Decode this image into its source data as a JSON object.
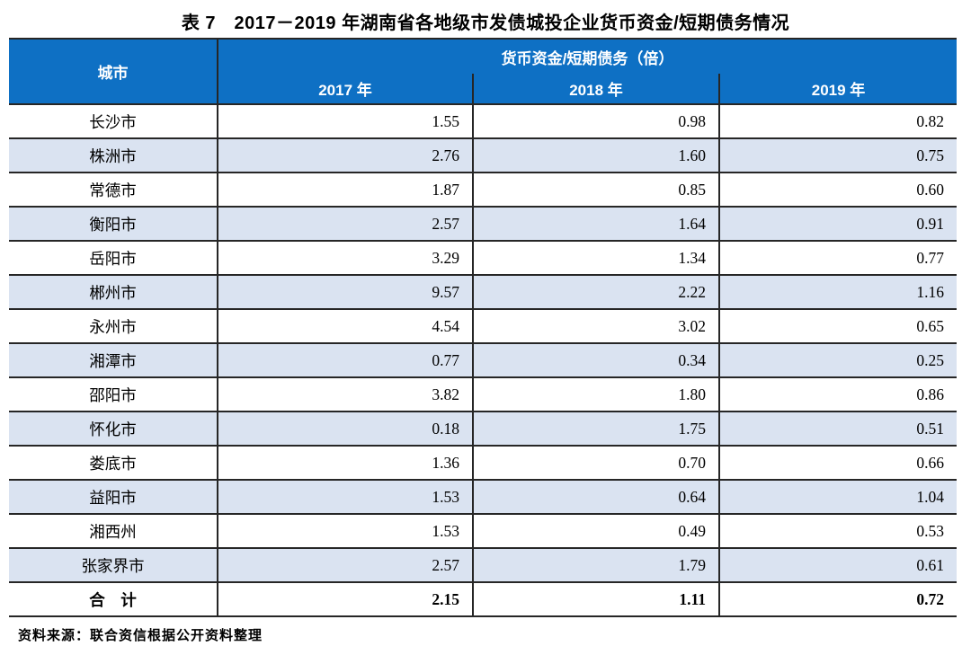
{
  "title": "表 7　2017－2019 年湖南省各地级市发债城投企业货币资金/短期债务情况",
  "source_note": "资料来源：联合资信根据公开资料整理",
  "colors": {
    "header_bg": "#0E70C4",
    "stripe_bg": "#DAE3F1",
    "border": "#262626",
    "header_text": "#FFFFFF"
  },
  "chart_data": {
    "type": "table",
    "title": "表 7　2017－2019 年湖南省各地级市发债城投企业货币资金/短期债务情况",
    "group_header": "货币资金/短期债务（倍）",
    "city_header": "城市",
    "year_columns": [
      "2017 年",
      "2018 年",
      "2019 年"
    ],
    "rows": [
      {
        "city": "长沙市",
        "values": [
          "1.55",
          "0.98",
          "0.82"
        ],
        "bold": false
      },
      {
        "city": "株洲市",
        "values": [
          "2.76",
          "1.60",
          "0.75"
        ],
        "bold": false
      },
      {
        "city": "常德市",
        "values": [
          "1.87",
          "0.85",
          "0.60"
        ],
        "bold": false
      },
      {
        "city": "衡阳市",
        "values": [
          "2.57",
          "1.64",
          "0.91"
        ],
        "bold": false
      },
      {
        "city": "岳阳市",
        "values": [
          "3.29",
          "1.34",
          "0.77"
        ],
        "bold": false
      },
      {
        "city": "郴州市",
        "values": [
          "9.57",
          "2.22",
          "1.16"
        ],
        "bold": false
      },
      {
        "city": "永州市",
        "values": [
          "4.54",
          "3.02",
          "0.65"
        ],
        "bold": false
      },
      {
        "city": "湘潭市",
        "values": [
          "0.77",
          "0.34",
          "0.25"
        ],
        "bold": false
      },
      {
        "city": "邵阳市",
        "values": [
          "3.82",
          "1.80",
          "0.86"
        ],
        "bold": false
      },
      {
        "city": "怀化市",
        "values": [
          "0.18",
          "1.75",
          "0.51"
        ],
        "bold": false
      },
      {
        "city": "娄底市",
        "values": [
          "1.36",
          "0.70",
          "0.66"
        ],
        "bold": false
      },
      {
        "city": "益阳市",
        "values": [
          "1.53",
          "0.64",
          "1.04"
        ],
        "bold": false
      },
      {
        "city": "湘西州",
        "values": [
          "1.53",
          "0.49",
          "0.53"
        ],
        "bold": false
      },
      {
        "city": "张家界市",
        "values": [
          "2.57",
          "1.79",
          "0.61"
        ],
        "bold": false
      },
      {
        "city": "合　计",
        "values": [
          "2.15",
          "1.11",
          "0.72"
        ],
        "bold": true
      }
    ]
  }
}
